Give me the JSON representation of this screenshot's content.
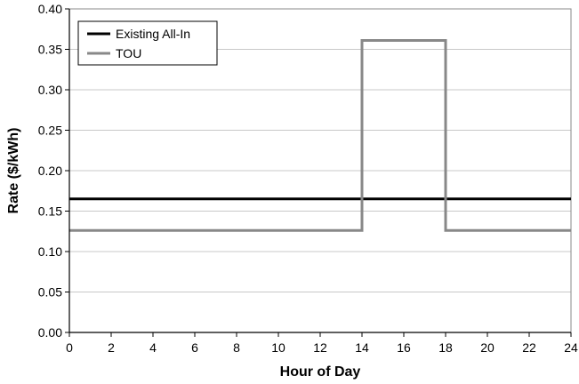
{
  "chart_data": {
    "type": "line",
    "title": "",
    "xlabel": "Hour of Day",
    "ylabel": "Rate ($/kWh)",
    "xlim": [
      0,
      24
    ],
    "ylim": [
      0,
      0.4
    ],
    "x_ticks": [
      0,
      2,
      4,
      6,
      8,
      10,
      12,
      14,
      16,
      18,
      20,
      22,
      24
    ],
    "y_ticks": [
      "0.00",
      "0.05",
      "0.10",
      "0.15",
      "0.20",
      "0.25",
      "0.30",
      "0.35",
      "0.40"
    ],
    "grid": "horizontal",
    "legend_position": "top-left",
    "series": [
      {
        "name": "Existing All-In",
        "color": "#000000",
        "step": true,
        "x": [
          0,
          24
        ],
        "y": [
          0.165,
          0.165
        ]
      },
      {
        "name": "TOU",
        "color": "#888888",
        "step": true,
        "x": [
          0,
          14,
          14,
          18,
          18,
          24
        ],
        "y": [
          0.126,
          0.126,
          0.361,
          0.361,
          0.126,
          0.126
        ]
      }
    ]
  }
}
